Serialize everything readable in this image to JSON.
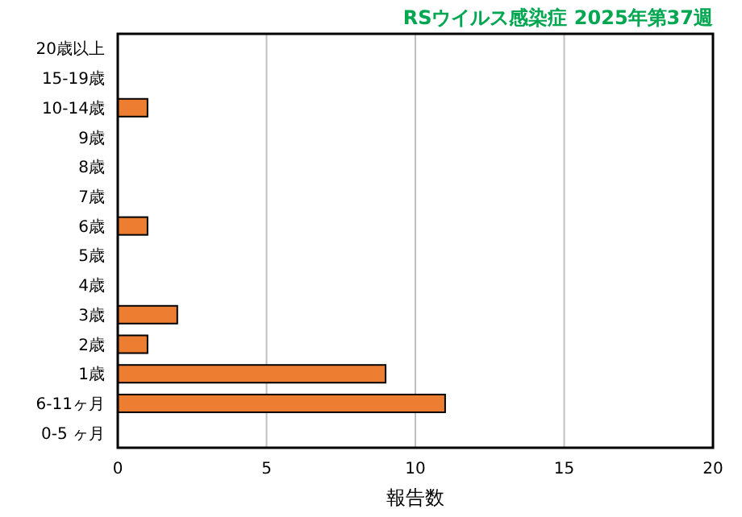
{
  "chart_data": {
    "type": "bar",
    "orientation": "horizontal",
    "title": "RSウイルス感染症 2025年第37週",
    "xlabel": "報告数",
    "categories": [
      "20歳以上",
      "15-19歳",
      "10-14歳",
      "9歳",
      "8歳",
      "7歳",
      "6歳",
      "5歳",
      "4歳",
      "3歳",
      "2歳",
      "1歳",
      "6-11ヶ月",
      "0-5 ヶ月"
    ],
    "values": [
      0,
      0,
      1,
      0,
      0,
      0,
      1,
      0,
      0,
      2,
      1,
      9,
      11,
      0
    ],
    "color": "#ed7d31",
    "xlim": [
      0,
      20
    ],
    "xticks": [
      0,
      5,
      10,
      15,
      20
    ],
    "grid": "x"
  }
}
